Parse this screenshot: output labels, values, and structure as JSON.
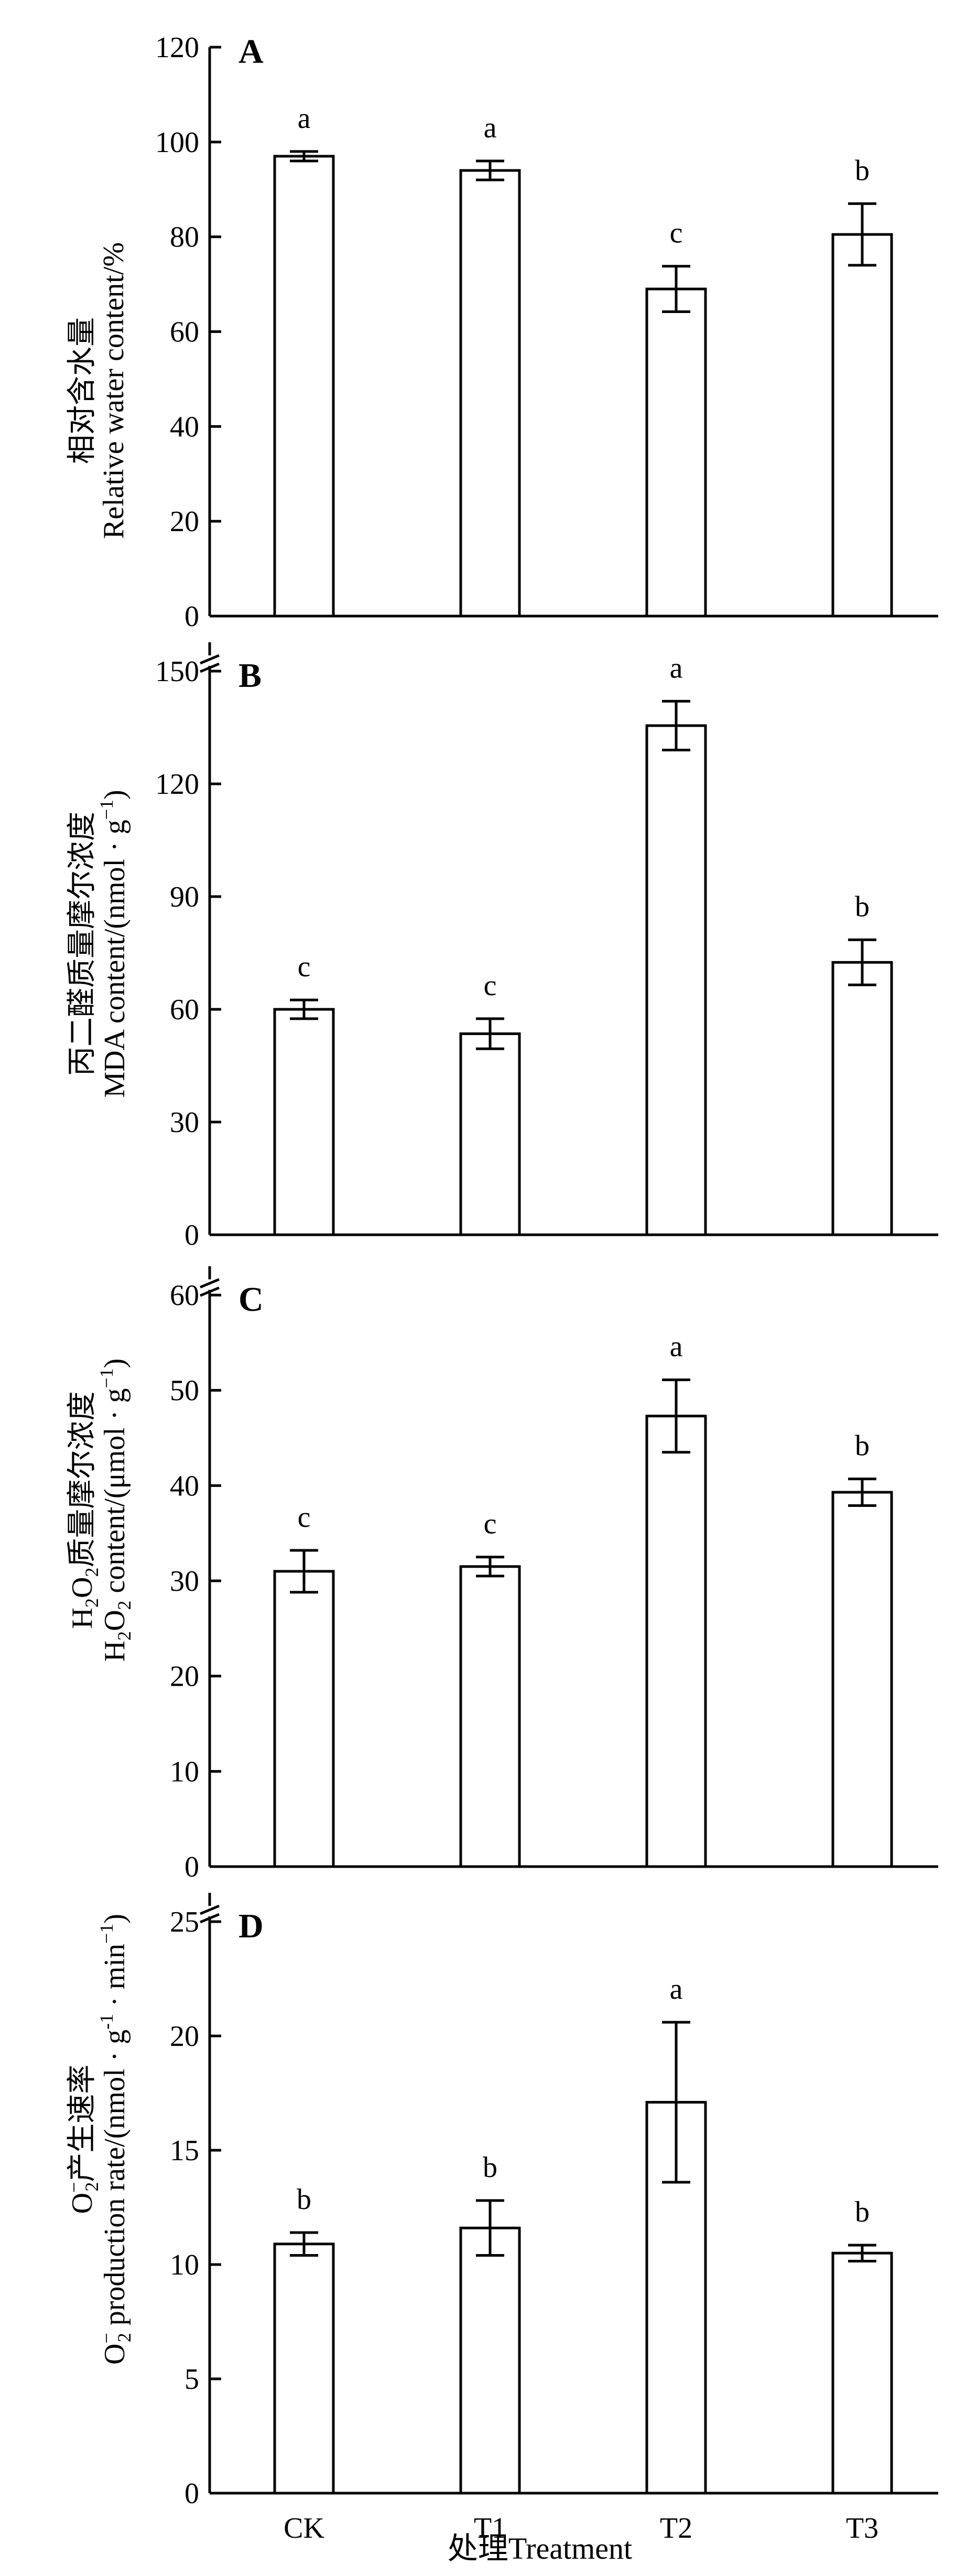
{
  "figure": {
    "xlabel": "处理Treatment"
  },
  "chart_data": [
    {
      "type": "bar",
      "panel": "A",
      "categories": [
        "CK",
        "T1",
        "T2",
        "T3"
      ],
      "values": [
        97,
        94,
        69,
        80.5
      ],
      "errors": [
        1,
        2,
        4.8,
        6.5
      ],
      "significance": [
        "a",
        "a",
        "c",
        "b"
      ],
      "ylabel_cn": "相对含水量",
      "ylabel_en": "Relative water content/%",
      "ylim": [
        0,
        120
      ],
      "yticks": [
        0,
        20,
        40,
        60,
        80,
        100,
        120
      ],
      "axis_break": false,
      "grid": false,
      "legend": "none"
    },
    {
      "type": "bar",
      "panel": "B",
      "categories": [
        "CK",
        "T1",
        "T2",
        "T3"
      ],
      "values": [
        60,
        53.5,
        135.5,
        72.5
      ],
      "errors": [
        2.5,
        4,
        6.5,
        6
      ],
      "significance": [
        "c",
        "c",
        "a",
        "b"
      ],
      "ylabel_cn": "丙二醛质量摩尔浓度",
      "ylabel_en": "MDA content/(nmol · g",
      "ylabel_en_sup": "−1",
      "ylabel_en_end": ")",
      "ylim": [
        0,
        150
      ],
      "yticks": [
        0,
        30,
        60,
        90,
        120,
        150
      ],
      "axis_break": true,
      "grid": false,
      "legend": "none"
    },
    {
      "type": "bar",
      "panel": "C",
      "categories": [
        "CK",
        "T1",
        "T2",
        "T3"
      ],
      "values": [
        31,
        31.5,
        47.3,
        39.3
      ],
      "errors": [
        2.2,
        1,
        3.8,
        1.4
      ],
      "significance": [
        "c",
        "c",
        "a",
        "b"
      ],
      "ylabel_cn_h": "H",
      "ylabel_cn_sub": "2",
      "ylabel_cn_o": "O",
      "ylabel_cn_sub2": "2",
      "ylabel_cn_rest": "质量摩尔浓度",
      "ylabel_en_h": "H",
      "ylabel_en_sub": "2",
      "ylabel_en_o": "O",
      "ylabel_en_sub2": "2",
      "ylabel_en_rest": " content/(μmol · g",
      "ylabel_en_sup": "−1",
      "ylabel_en_end": ")",
      "ylim": [
        0,
        60
      ],
      "yticks": [
        0,
        10,
        20,
        30,
        40,
        50,
        60
      ],
      "axis_break": true,
      "grid": false,
      "legend": "none"
    },
    {
      "type": "bar",
      "panel": "D",
      "categories": [
        "CK",
        "T1",
        "T2",
        "T3"
      ],
      "values": [
        10.9,
        11.6,
        17.1,
        10.5
      ],
      "errors": [
        0.5,
        1.2,
        3.5,
        0.35
      ],
      "significance": [
        "b",
        "b",
        "a",
        "b"
      ],
      "ylabel_cn_o": "O",
      "ylabel_cn_sup": "−",
      "ylabel_cn_sub": "2",
      "ylabel_cn_rest": "产生速率",
      "ylabel_en_o": "O",
      "ylabel_en_sup": "−",
      "ylabel_en_sub": "2",
      "ylabel_en_rest": " production rate/(nmol · g",
      "ylabel_en_sup2": "-1",
      "ylabel_en_mid": " · min",
      "ylabel_en_sup3": "−1",
      "ylabel_en_end": ")",
      "ylim": [
        0,
        25
      ],
      "yticks": [
        0,
        5,
        10,
        15,
        20,
        25
      ],
      "axis_break": true,
      "grid": false,
      "legend": "none"
    }
  ]
}
